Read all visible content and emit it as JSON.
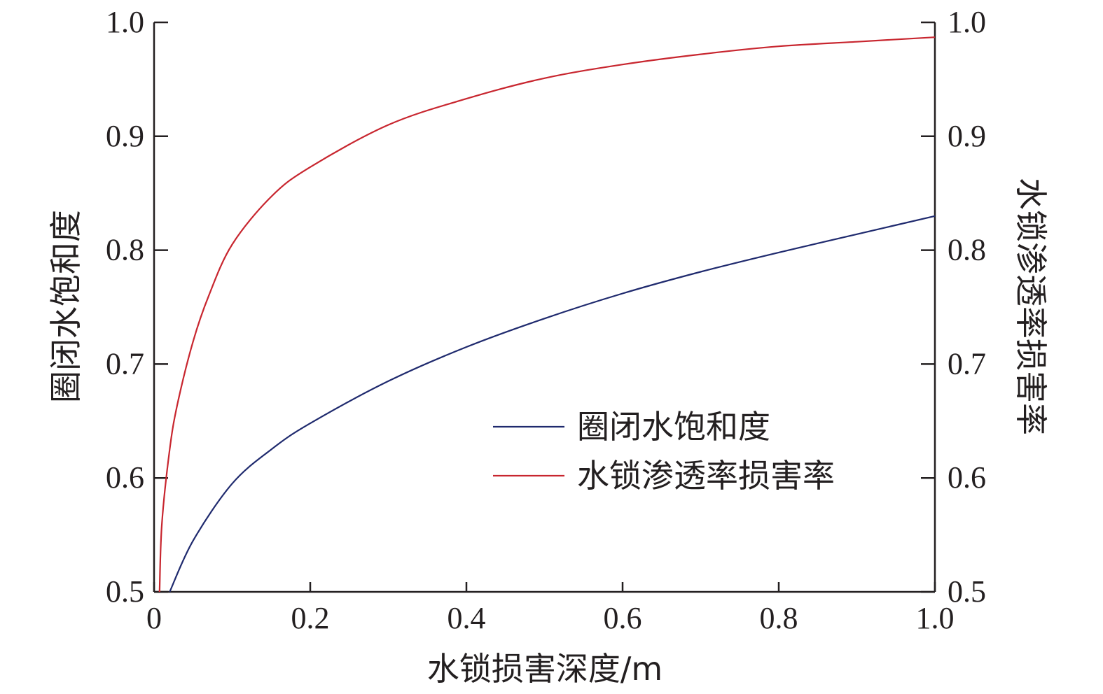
{
  "chart_data": {
    "type": "line",
    "xlabel": "水锁损害深度/m",
    "ylabel_left": "圈闭水饱和度",
    "ylabel_right": "水锁渗透率损害率",
    "xlim": [
      0,
      1.0
    ],
    "ylim_left": [
      0.5,
      1.0
    ],
    "ylim_right": [
      0.5,
      1.0
    ],
    "x_ticks": [
      0,
      0.2,
      0.4,
      0.6,
      0.8,
      1.0
    ],
    "x_tick_labels": [
      "0",
      "0.2",
      "0.4",
      "0.6",
      "0.8",
      "1.0"
    ],
    "y_ticks": [
      0.5,
      0.6,
      0.7,
      0.8,
      0.9,
      1.0
    ],
    "y_tick_labels_left": [
      "0.5",
      "0.6",
      "0.7",
      "0.8",
      "0.9",
      "1.0"
    ],
    "y_tick_labels_right": [
      "0.5",
      "0.6",
      "0.7",
      "0.8",
      "0.9",
      "1.0"
    ],
    "grid": false,
    "legend_position": "center-right",
    "series": [
      {
        "name": "圈闭水饱和度",
        "axis": "left",
        "color": "#1f2a6e",
        "x": [
          0.02,
          0.05,
          0.1,
          0.15,
          0.2,
          0.3,
          0.4,
          0.5,
          0.6,
          0.7,
          0.8,
          0.9,
          1.0
        ],
        "y": [
          0.5,
          0.545,
          0.595,
          0.625,
          0.648,
          0.685,
          0.715,
          0.74,
          0.762,
          0.781,
          0.798,
          0.814,
          0.83
        ]
      },
      {
        "name": "水锁渗透率损害率",
        "axis": "right",
        "color": "#c8262f",
        "x": [
          0.007,
          0.01,
          0.02,
          0.03,
          0.05,
          0.07,
          0.1,
          0.15,
          0.2,
          0.3,
          0.4,
          0.5,
          0.6,
          0.7,
          0.8,
          0.9,
          1.0
        ],
        "y": [
          0.5,
          0.56,
          0.625,
          0.665,
          0.72,
          0.76,
          0.805,
          0.847,
          0.873,
          0.91,
          0.933,
          0.951,
          0.963,
          0.972,
          0.979,
          0.983,
          0.987
        ]
      }
    ]
  }
}
